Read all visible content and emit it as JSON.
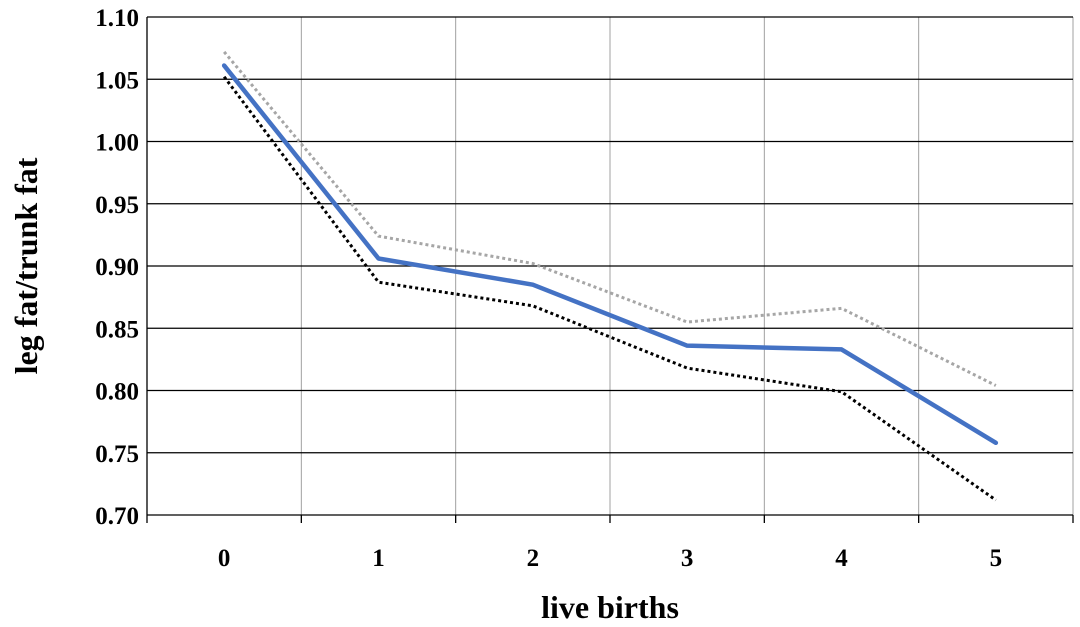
{
  "chart_data": {
    "type": "line",
    "title": "",
    "xlabel": "live births",
    "ylabel": "leg fat/trunk fat",
    "x": [
      0,
      1,
      2,
      3,
      4,
      5
    ],
    "x_tick_labels": [
      "0",
      "1",
      "2",
      "3",
      "4",
      "5"
    ],
    "y_tick_labels": [
      "0.70",
      "0.75",
      "0.80",
      "0.85",
      "0.90",
      "0.95",
      "1.00",
      "1.05",
      "1.10"
    ],
    "ylim": [
      0.7,
      1.1
    ],
    "grid": true,
    "legend": "none",
    "series": [
      {
        "values": [
          1.072,
          0.924,
          0.902,
          0.855,
          0.866,
          0.804
        ],
        "color": "#a6a6a6",
        "style": "dotted"
      },
      {
        "values": [
          1.061,
          0.906,
          0.885,
          0.836,
          0.833,
          0.758
        ],
        "color": "#4472c4",
        "style": "solid"
      },
      {
        "values": [
          1.052,
          0.887,
          0.868,
          0.818,
          0.799,
          0.712
        ],
        "color": "#000000",
        "style": "dotted"
      }
    ]
  }
}
